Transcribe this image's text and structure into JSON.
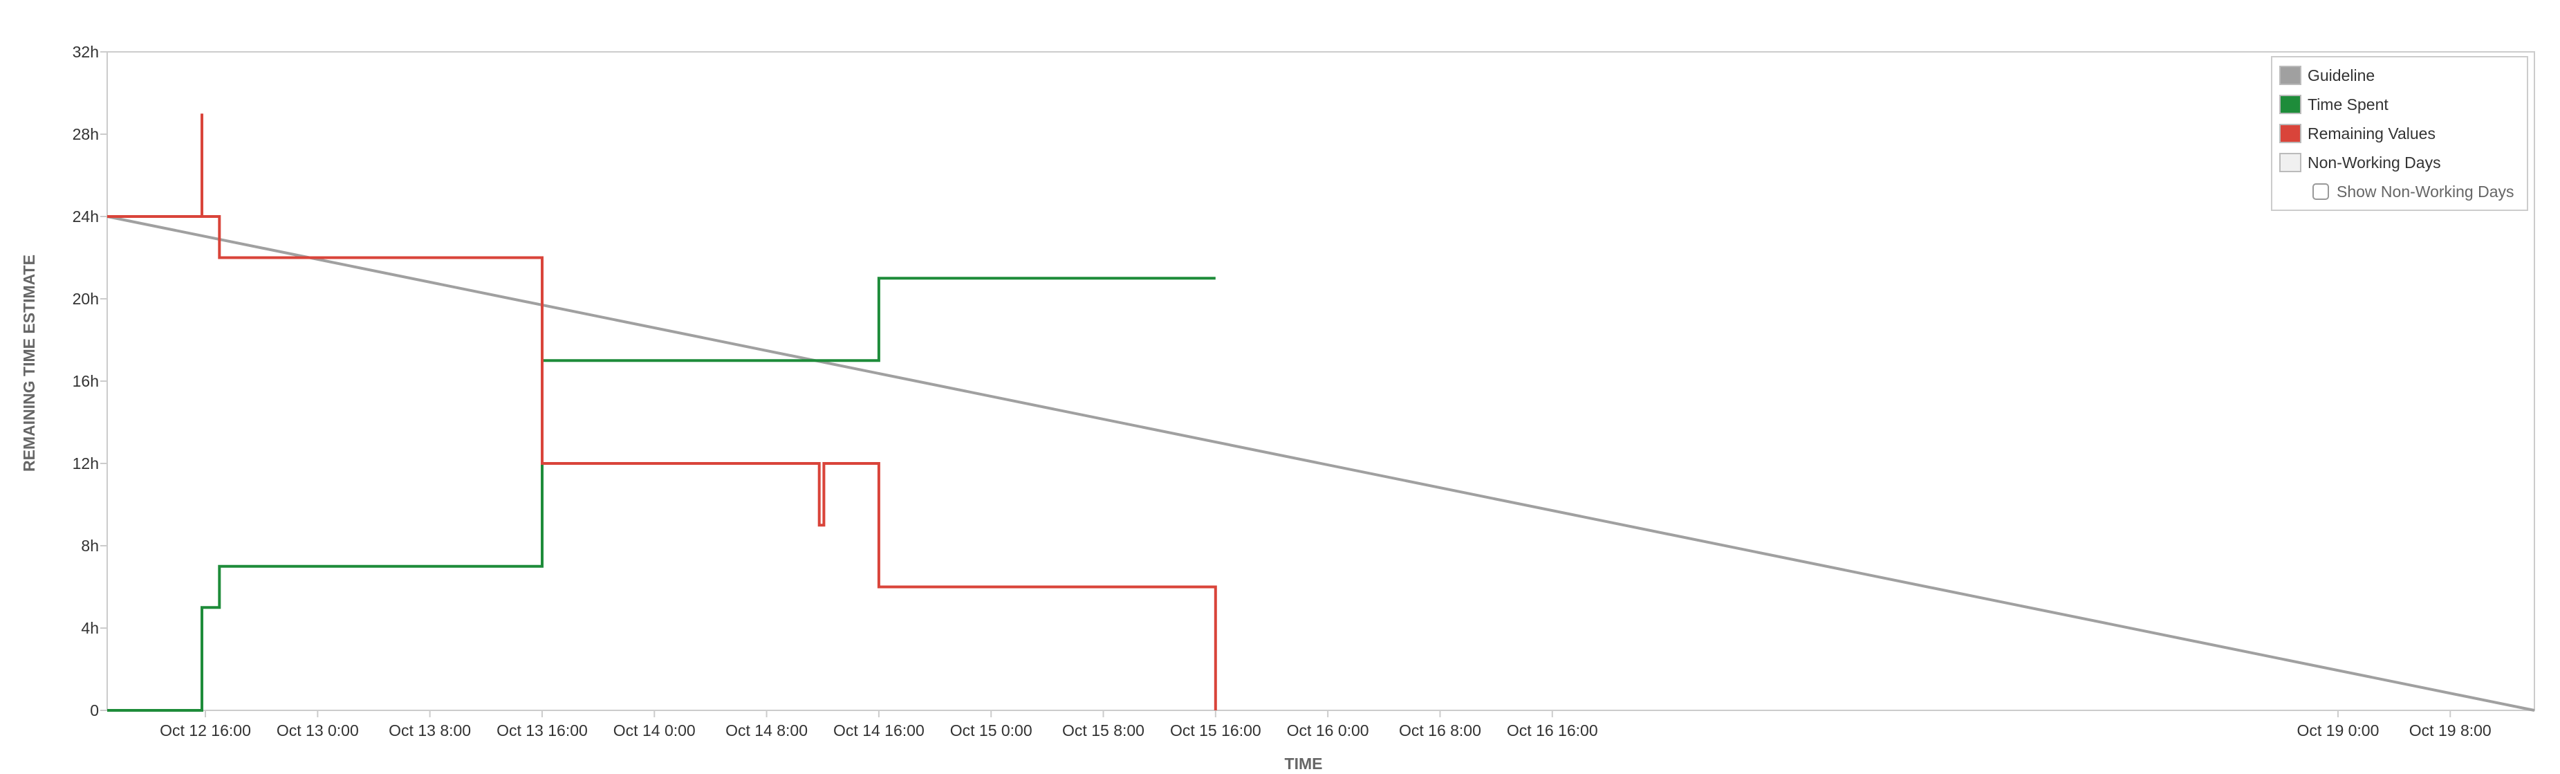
{
  "chart_data": {
    "type": "line",
    "xlabel": "TIME",
    "ylabel": "REMAINING TIME ESTIMATE",
    "x_unit": "hours",
    "ylim": [
      0,
      32
    ],
    "y_ticks": [
      {
        "value": 0,
        "label": "0"
      },
      {
        "value": 4,
        "label": "4h"
      },
      {
        "value": 8,
        "label": "8h"
      },
      {
        "value": 12,
        "label": "12h"
      },
      {
        "value": 16,
        "label": "16h"
      },
      {
        "value": 20,
        "label": "20h"
      },
      {
        "value": 24,
        "label": "24h"
      },
      {
        "value": 28,
        "label": "28h"
      },
      {
        "value": 32,
        "label": "32h"
      }
    ],
    "x_range": [
      "Oct 12 09:00",
      "Oct 19 14:00"
    ],
    "x_ticks": [
      {
        "time": "Oct 12 16:00",
        "label": "Oct 12 16:00"
      },
      {
        "time": "Oct 13 00:00",
        "label": "Oct 13 0:00"
      },
      {
        "time": "Oct 13 08:00",
        "label": "Oct 13 8:00"
      },
      {
        "time": "Oct 13 16:00",
        "label": "Oct 13 16:00"
      },
      {
        "time": "Oct 14 00:00",
        "label": "Oct 14 0:00"
      },
      {
        "time": "Oct 14 08:00",
        "label": "Oct 14 8:00"
      },
      {
        "time": "Oct 14 16:00",
        "label": "Oct 14 16:00"
      },
      {
        "time": "Oct 15 00:00",
        "label": "Oct 15 0:00"
      },
      {
        "time": "Oct 15 08:00",
        "label": "Oct 15 8:00"
      },
      {
        "time": "Oct 15 16:00",
        "label": "Oct 15 16:00"
      },
      {
        "time": "Oct 16 00:00",
        "label": "Oct 16 0:00"
      },
      {
        "time": "Oct 16 08:00",
        "label": "Oct 16 8:00"
      },
      {
        "time": "Oct 16 16:00",
        "label": "Oct 16 16:00"
      },
      {
        "time": "Oct 19 00:00",
        "label": "Oct 19 0:00"
      },
      {
        "time": "Oct 19 08:00",
        "label": "Oct 19 8:00"
      }
    ],
    "series": [
      {
        "name": "Guideline",
        "color": "#a0a0a0",
        "step": false,
        "points": [
          [
            "Oct 12 09:00",
            24
          ],
          [
            "Oct 19 14:00",
            0
          ]
        ]
      },
      {
        "name": "Time Spent",
        "color": "#1e8c3a",
        "step": true,
        "points": [
          [
            "Oct 12 09:00",
            0
          ],
          [
            "Oct 12 15:45",
            0
          ],
          [
            "Oct 12 15:45",
            5
          ],
          [
            "Oct 12 17:00",
            5
          ],
          [
            "Oct 12 17:00",
            7
          ],
          [
            "Oct 13 16:00",
            7
          ],
          [
            "Oct 13 16:00",
            17
          ],
          [
            "Oct 14 16:00",
            17
          ],
          [
            "Oct 14 16:00",
            21
          ],
          [
            "Oct 15 16:00",
            21
          ]
        ]
      },
      {
        "name": "Remaining Values",
        "color": "#d9443a",
        "step": true,
        "points": [
          [
            "Oct 12 09:00",
            24
          ],
          [
            "Oct 12 15:45",
            24
          ],
          [
            "Oct 12 15:45",
            29
          ],
          [
            "Oct 12 15:45",
            24
          ],
          [
            "Oct 12 17:00",
            24
          ],
          [
            "Oct 12 17:00",
            22
          ],
          [
            "Oct 13 16:00",
            22
          ],
          [
            "Oct 13 16:00",
            12
          ],
          [
            "Oct 14 11:45",
            12
          ],
          [
            "Oct 14 11:45",
            9
          ],
          [
            "Oct 14 12:05",
            9
          ],
          [
            "Oct 14 12:05",
            12
          ],
          [
            "Oct 14 16:00",
            12
          ],
          [
            "Oct 14 16:00",
            6
          ],
          [
            "Oct 15 16:00",
            6
          ],
          [
            "Oct 15 16:00",
            0
          ]
        ]
      }
    ],
    "legend": {
      "position": "top-right",
      "items": [
        {
          "label": "Guideline",
          "color": "#a0a0a0"
        },
        {
          "label": "Time Spent",
          "color": "#1e8c3a"
        },
        {
          "label": "Remaining Values",
          "color": "#d9443a"
        },
        {
          "label": "Non-Working Days",
          "color": "#f0f0f0"
        }
      ],
      "checkbox_label": "Show Non-Working Days",
      "checkbox_checked": false
    },
    "grid": false
  }
}
